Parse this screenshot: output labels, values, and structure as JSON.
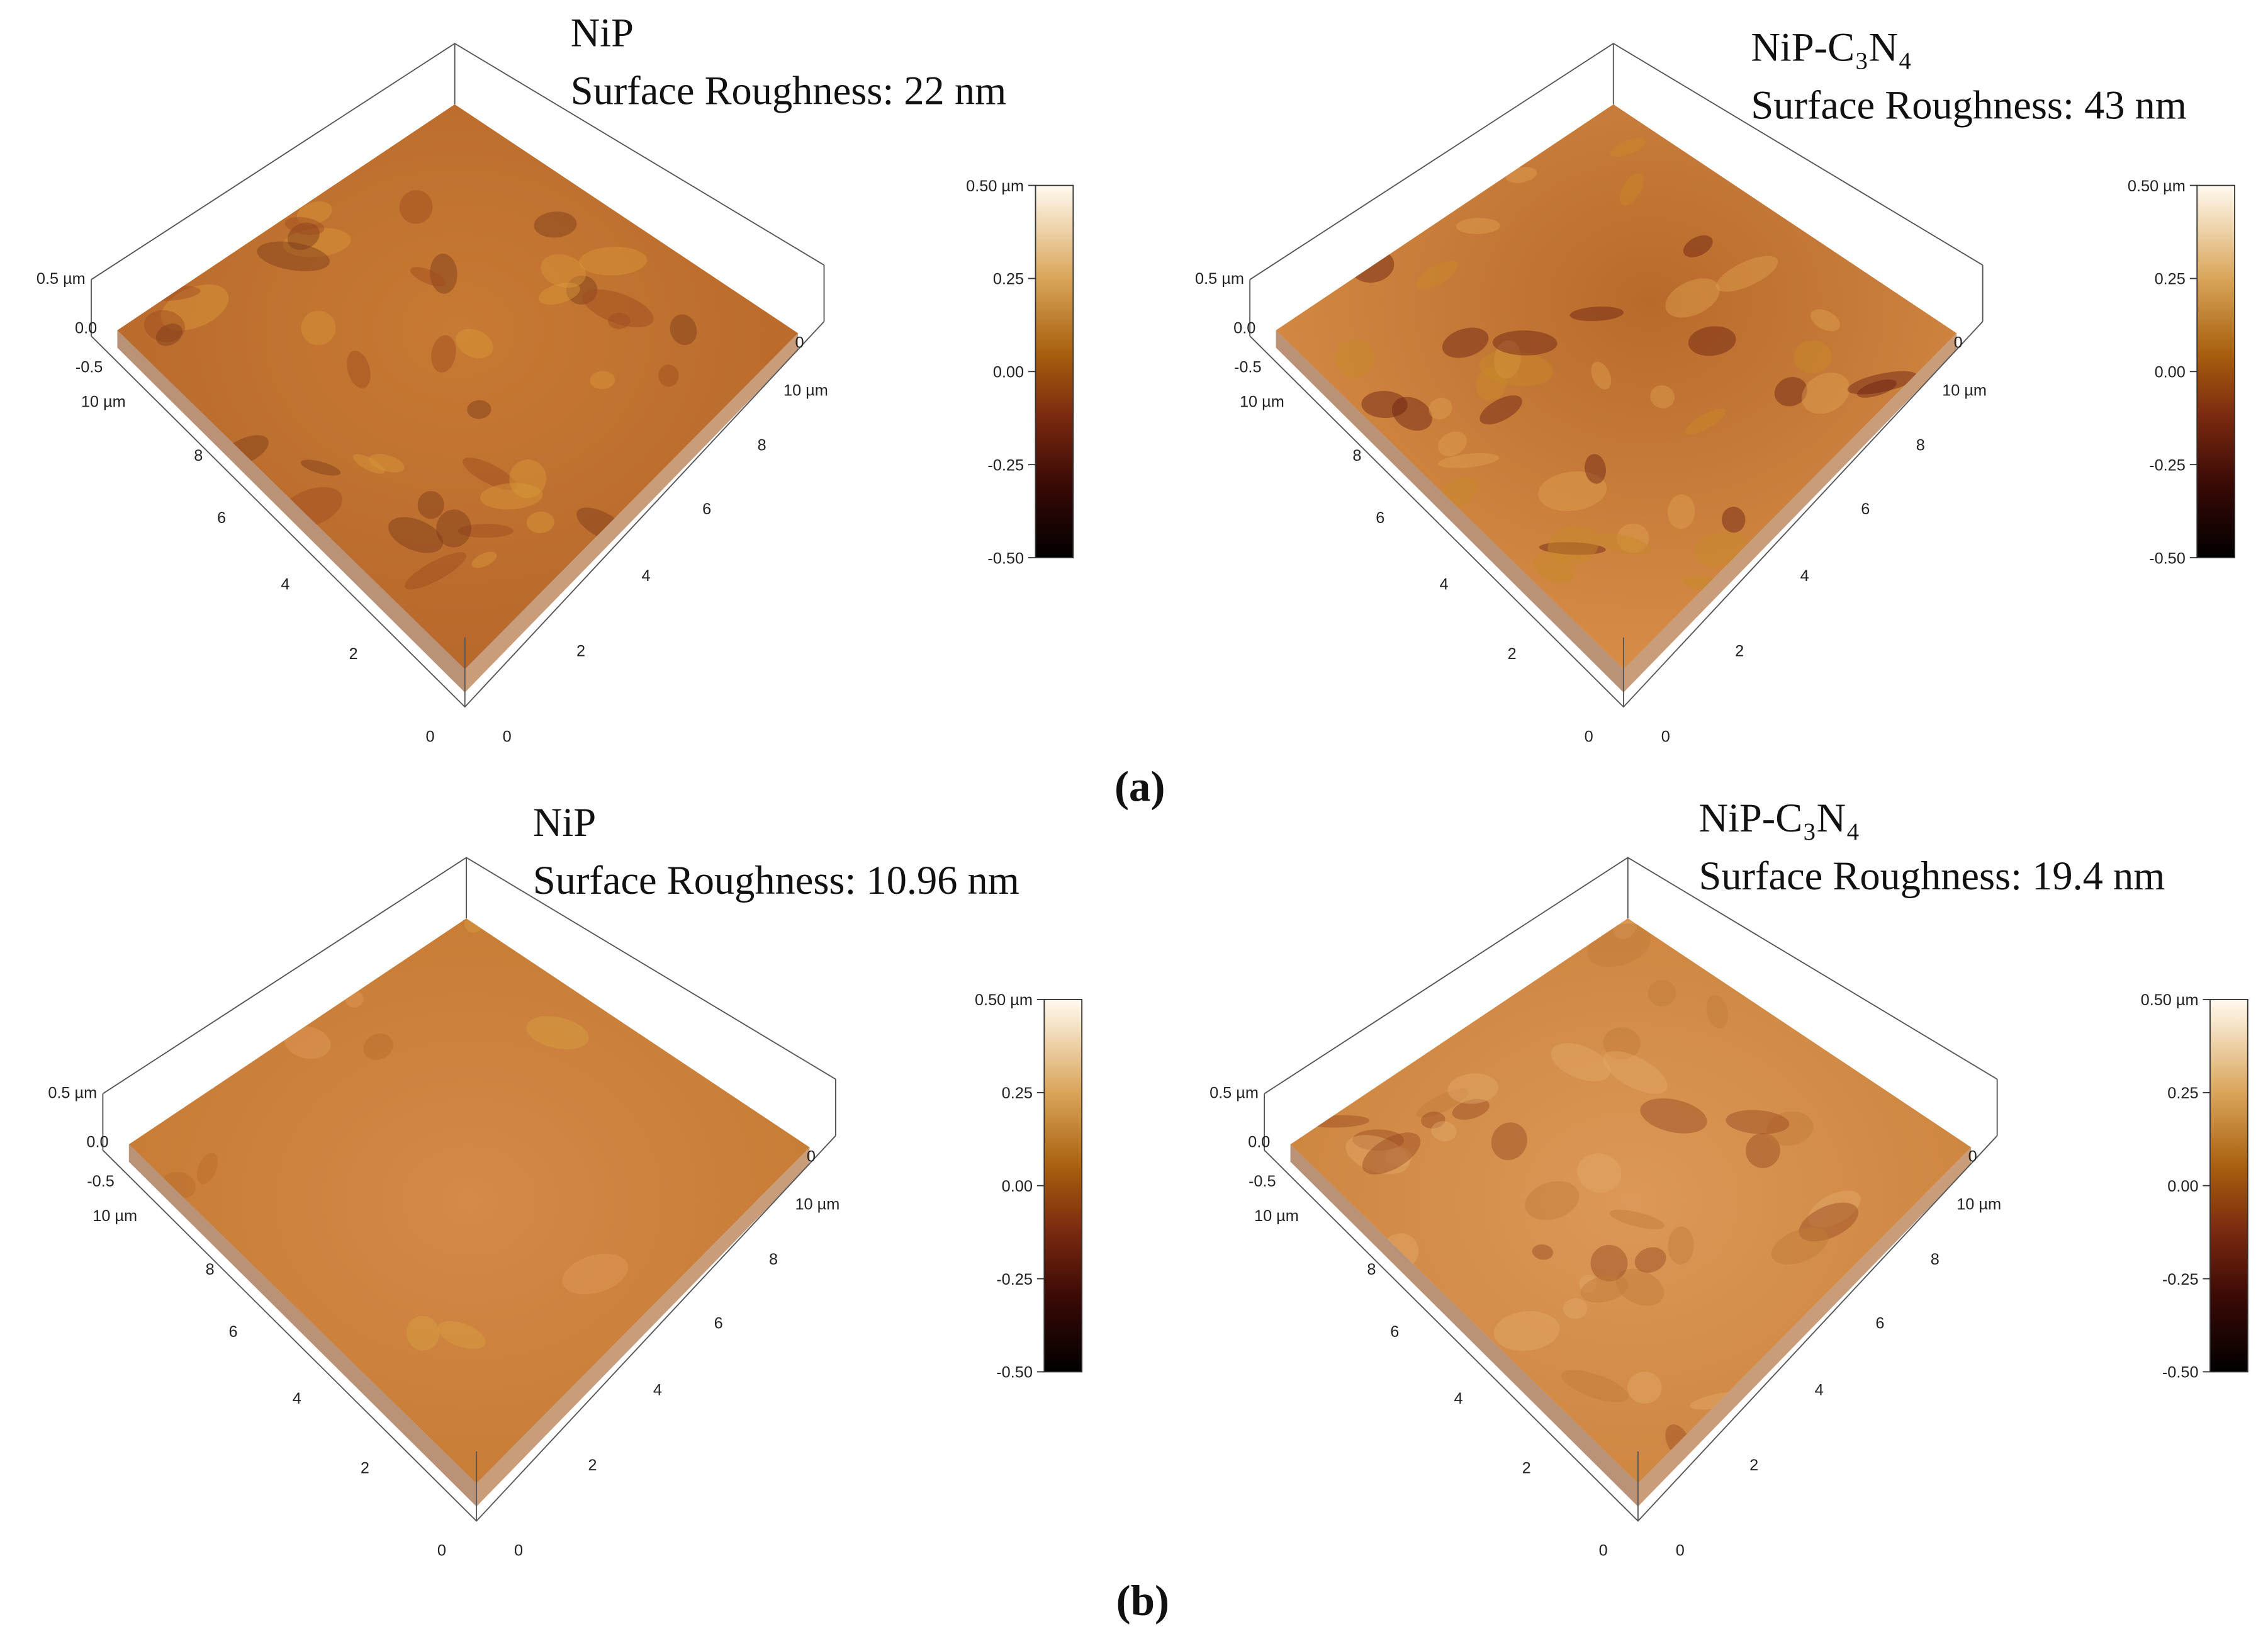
{
  "panels": [
    {
      "title": "NiP",
      "roughness": "Surface Roughness: 22 nm",
      "z_ticks": [
        "0.5 µm",
        "0.0",
        "-0.5"
      ],
      "left_label": "10 µm",
      "left_ticks": [
        "8",
        "6",
        "4",
        "2",
        "0"
      ],
      "right_ticks": [
        "0",
        "10 µm",
        "8",
        "6",
        "4",
        "2",
        "0"
      ],
      "colorbar_ticks": [
        "0.50 µm",
        "0.25",
        "0.00",
        "-0.25",
        "-0.50"
      ]
    },
    {
      "title": "NiP-C₃N₄",
      "roughness": "Surface Roughness: 43 nm",
      "z_ticks": [
        "0.5 µm",
        "0.0",
        "-0.5"
      ],
      "left_label": "10 µm",
      "left_ticks": [
        "8",
        "6",
        "4",
        "2",
        "0"
      ],
      "right_ticks": [
        "0",
        "10 µm",
        "8",
        "6",
        "4",
        "2",
        "0"
      ],
      "colorbar_ticks": [
        "0.50 µm",
        "0.25",
        "0.00",
        "-0.25",
        "-0.50"
      ]
    },
    {
      "title": "NiP",
      "roughness": "Surface Roughness: 10.96 nm",
      "z_ticks": [
        "0.5 µm",
        "0.0",
        "-0.5"
      ],
      "left_label": "10 µm",
      "left_ticks": [
        "8",
        "6",
        "4",
        "2",
        "0"
      ],
      "right_ticks": [
        "0",
        "10 µm",
        "8",
        "6",
        "4",
        "2",
        "0"
      ],
      "colorbar_ticks": [
        "0.50 µm",
        "0.25",
        "0.00",
        "-0.25",
        "-0.50"
      ]
    },
    {
      "title": "NiP-C₃N₄",
      "roughness": "Surface Roughness: 19.4 nm",
      "z_ticks": [
        "0.5 µm",
        "0.0",
        "-0.5"
      ],
      "left_label": "10 µm",
      "left_ticks": [
        "8",
        "6",
        "4",
        "2",
        "0"
      ],
      "right_ticks": [
        "0",
        "10 µm",
        "8",
        "6",
        "4",
        "2",
        "0"
      ],
      "colorbar_ticks": [
        "0.50 µm",
        "0.25",
        "0.00",
        "-0.25",
        "-0.50"
      ]
    }
  ],
  "captions": [
    "(a)",
    "(b)"
  ]
}
